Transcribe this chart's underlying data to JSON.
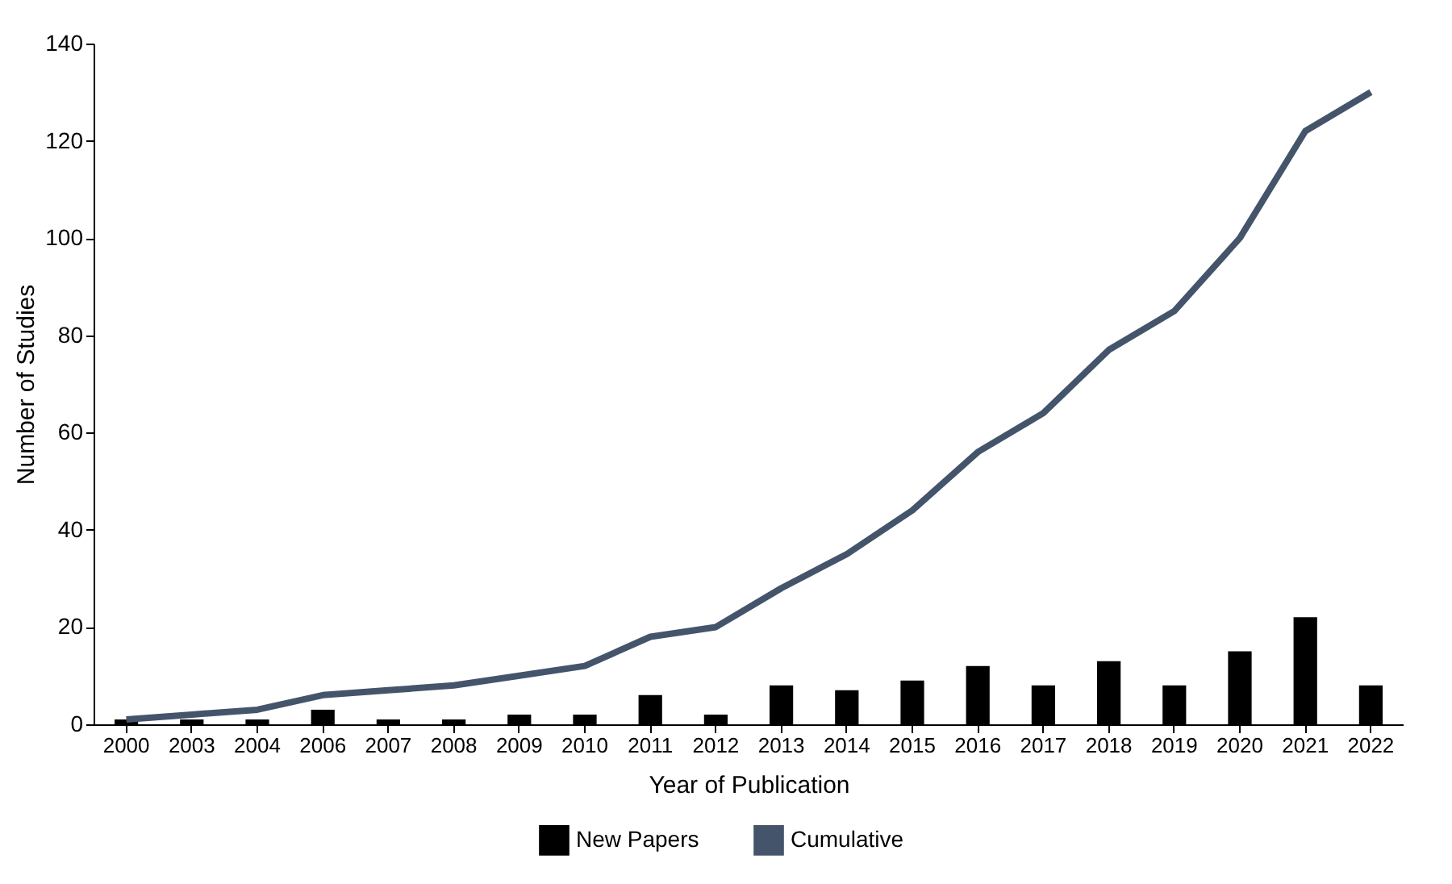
{
  "chart_data": {
    "type": "bar",
    "xlabel": "Year of Publication",
    "ylabel": "Number of Studies",
    "categories": [
      "2000",
      "2003",
      "2004",
      "2006",
      "2007",
      "2008",
      "2009",
      "2010",
      "2011",
      "2012",
      "2013",
      "2014",
      "2015",
      "2016",
      "2017",
      "2018",
      "2019",
      "2020",
      "2021",
      "2022"
    ],
    "series": [
      {
        "name": "New Papers",
        "color": "#000000",
        "values": [
          1,
          1,
          1,
          3,
          1,
          1,
          2,
          2,
          6,
          2,
          8,
          7,
          9,
          12,
          8,
          13,
          8,
          15,
          22,
          8
        ]
      },
      {
        "name": "Cumulative",
        "type": "line",
        "color": "#44546a",
        "values": [
          1,
          2,
          3,
          6,
          7,
          8,
          10,
          12,
          18,
          20,
          28,
          35,
          44,
          56,
          64,
          77,
          85,
          100,
          122,
          130
        ]
      }
    ],
    "ylim": [
      0,
      140
    ],
    "yticks": [
      0,
      20,
      40,
      60,
      80,
      100,
      120,
      140
    ],
    "grid": false,
    "legend": "bottom",
    "marker": "none",
    "line_style": "solid"
  }
}
